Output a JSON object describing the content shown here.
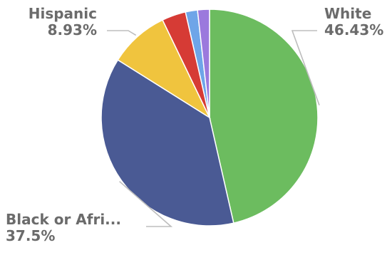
{
  "chart_data": {
    "type": "pie",
    "slices": [
      {
        "label": "White",
        "value": 46.43,
        "value_label": "46.43%",
        "color": "#6cbc5f"
      },
      {
        "label": "Black or Afri...",
        "value": 37.5,
        "value_label": "37.5%",
        "color": "#4a5a94"
      },
      {
        "label": "Hispanic",
        "value": 8.93,
        "value_label": "8.93%",
        "color": "#f0c43e"
      },
      {
        "label": "",
        "value": 3.57,
        "color": "#d63b35"
      },
      {
        "label": "",
        "value": 1.79,
        "color": "#6ea5e8"
      },
      {
        "label": "",
        "value": 1.78,
        "color": "#9b79dd"
      }
    ],
    "start_angle": "12 o'clock",
    "direction": "clockwise"
  }
}
